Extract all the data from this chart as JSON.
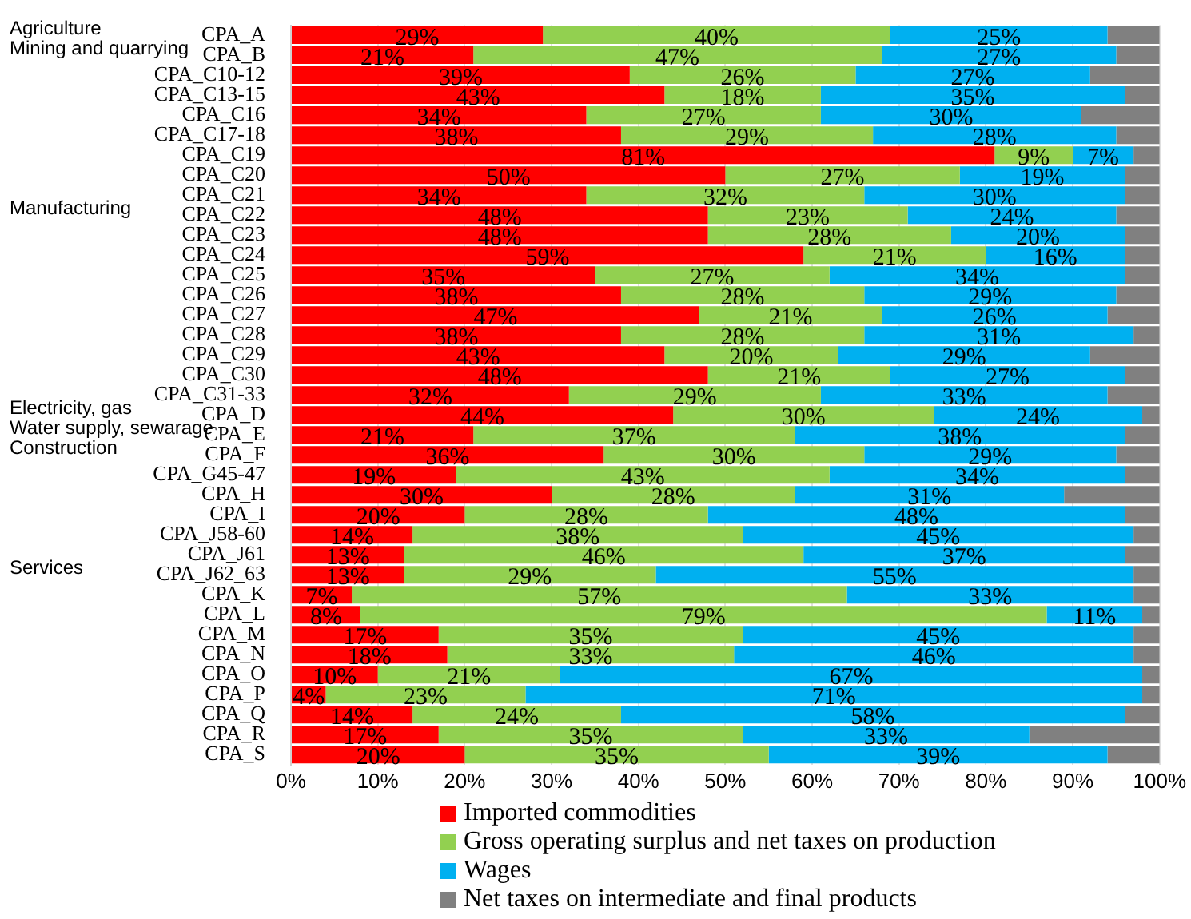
{
  "chart_data": {
    "type": "bar",
    "orientation": "horizontal",
    "stacked": true,
    "grid": "x",
    "legend": "bottom",
    "categories": [
      "CPA_A",
      "CPA_B",
      "CPA_C10-12",
      "CPA_C13-15",
      "CPA_C16",
      "CPA_C17-18",
      "CPA_C19",
      "CPA_C20",
      "CPA_C21",
      "CPA_C22",
      "CPA_C23",
      "CPA_C24",
      "CPA_C25",
      "CPA_C26",
      "CPA_C27",
      "CPA_C28",
      "CPA_C29",
      "CPA_C30",
      "CPA_C31-33",
      "CPA_D",
      "CPA_E",
      "CPA_F",
      "CPA_G45-47",
      "CPA_H",
      "CPA_I",
      "CPA_J58-60",
      "CPA_J61",
      "CPA_J62_63",
      "CPA_K",
      "CPA_L",
      "CPA_M",
      "CPA_N",
      "CPA_O",
      "CPA_P",
      "CPA_Q",
      "CPA_R",
      "CPA_S"
    ],
    "xlim": [
      0,
      100
    ],
    "xticks": [
      {
        "value": 0,
        "label": "0%"
      },
      {
        "value": 10,
        "label": "10%"
      },
      {
        "value": 20,
        "label": "20%"
      },
      {
        "value": 30,
        "label": "30%"
      },
      {
        "value": 40,
        "label": "40%"
      },
      {
        "value": 50,
        "label": "50%"
      },
      {
        "value": 60,
        "label": "60%"
      },
      {
        "value": 70,
        "label": "70%"
      },
      {
        "value": 80,
        "label": "80%"
      },
      {
        "value": 90,
        "label": "90%"
      },
      {
        "value": 100,
        "label": "100%"
      }
    ],
    "series": [
      {
        "name": "Imported commodities",
        "color": "#ff0000",
        "values": [
          29,
          21,
          39,
          43,
          34,
          38,
          81,
          50,
          34,
          48,
          48,
          59,
          35,
          38,
          47,
          38,
          43,
          48,
          32,
          44,
          21,
          36,
          19,
          30,
          20,
          14,
          13,
          13,
          7,
          8,
          17,
          18,
          10,
          4,
          14,
          17,
          20
        ],
        "value_labels": [
          "29%",
          "21%",
          "39%",
          "43%",
          "34%",
          "38%",
          "81%",
          "50%",
          "34%",
          "48%",
          "48%",
          "59%",
          "35%",
          "38%",
          "47%",
          "38%",
          "43%",
          "48%",
          "32%",
          "44%",
          "21%",
          "36%",
          "19%",
          "30%",
          "20%",
          "14%",
          "13%",
          "13%",
          "7%",
          "8%",
          "17%",
          "18%",
          "10%",
          "4%",
          "14%",
          "17%",
          "20%"
        ]
      },
      {
        "name": "Gross operating surplus and net taxes on production",
        "color": "#92d050",
        "values": [
          40,
          47,
          26,
          18,
          27,
          29,
          9,
          27,
          32,
          23,
          28,
          21,
          27,
          28,
          21,
          28,
          20,
          21,
          29,
          30,
          37,
          30,
          43,
          28,
          28,
          38,
          46,
          29,
          57,
          79,
          35,
          33,
          21,
          23,
          24,
          35,
          35
        ],
        "value_labels": [
          "40%",
          "47%",
          "26%",
          "18%",
          "27%",
          "29%",
          "9%",
          "27%",
          "32%",
          "23%",
          "28%",
          "21%",
          "27%",
          "28%",
          "21%",
          "28%",
          "20%",
          "21%",
          "29%",
          "30%",
          "37%",
          "30%",
          "43%",
          "28%",
          "28%",
          "38%",
          "46%",
          "29%",
          "57%",
          "79%",
          "35%",
          "33%",
          "21%",
          "23%",
          "24%",
          "35%",
          "35%"
        ]
      },
      {
        "name": "Wages",
        "color": "#00b0f0",
        "values": [
          25,
          27,
          27,
          35,
          30,
          28,
          7,
          19,
          30,
          24,
          20,
          16,
          34,
          29,
          26,
          31,
          29,
          27,
          33,
          24,
          38,
          29,
          34,
          31,
          48,
          45,
          37,
          55,
          33,
          11,
          45,
          46,
          67,
          71,
          58,
          33,
          39
        ],
        "value_labels": [
          "25%",
          "27%",
          "27%",
          "35%",
          "30%",
          "28%",
          "7%",
          "19%",
          "30%",
          "24%",
          "20%",
          "16%",
          "34%",
          "29%",
          "26%",
          "31%",
          "29%",
          "27%",
          "33%",
          "24%",
          "38%",
          "29%",
          "34%",
          "31%",
          "48%",
          "45%",
          "37%",
          "55%",
          "33%",
          "11%",
          "45%",
          "46%",
          "67%",
          "71%",
          "58%",
          "33%",
          "39%"
        ]
      },
      {
        "name": "Net taxes on intermediate and final products",
        "color": "#808080",
        "values": [
          6,
          5,
          8,
          4,
          9,
          5,
          3,
          4,
          4,
          5,
          4,
          4,
          4,
          5,
          6,
          3,
          8,
          4,
          6,
          2,
          4,
          5,
          4,
          11,
          4,
          3,
          4,
          3,
          3,
          2,
          3,
          3,
          2,
          2,
          4,
          15,
          6
        ]
      }
    ],
    "annotations": [
      "Agriculture",
      "Mining and quarrying",
      "Manufacturing",
      "Electricity, gas",
      "Water supply, sewarage",
      "Construction",
      "Services"
    ]
  }
}
